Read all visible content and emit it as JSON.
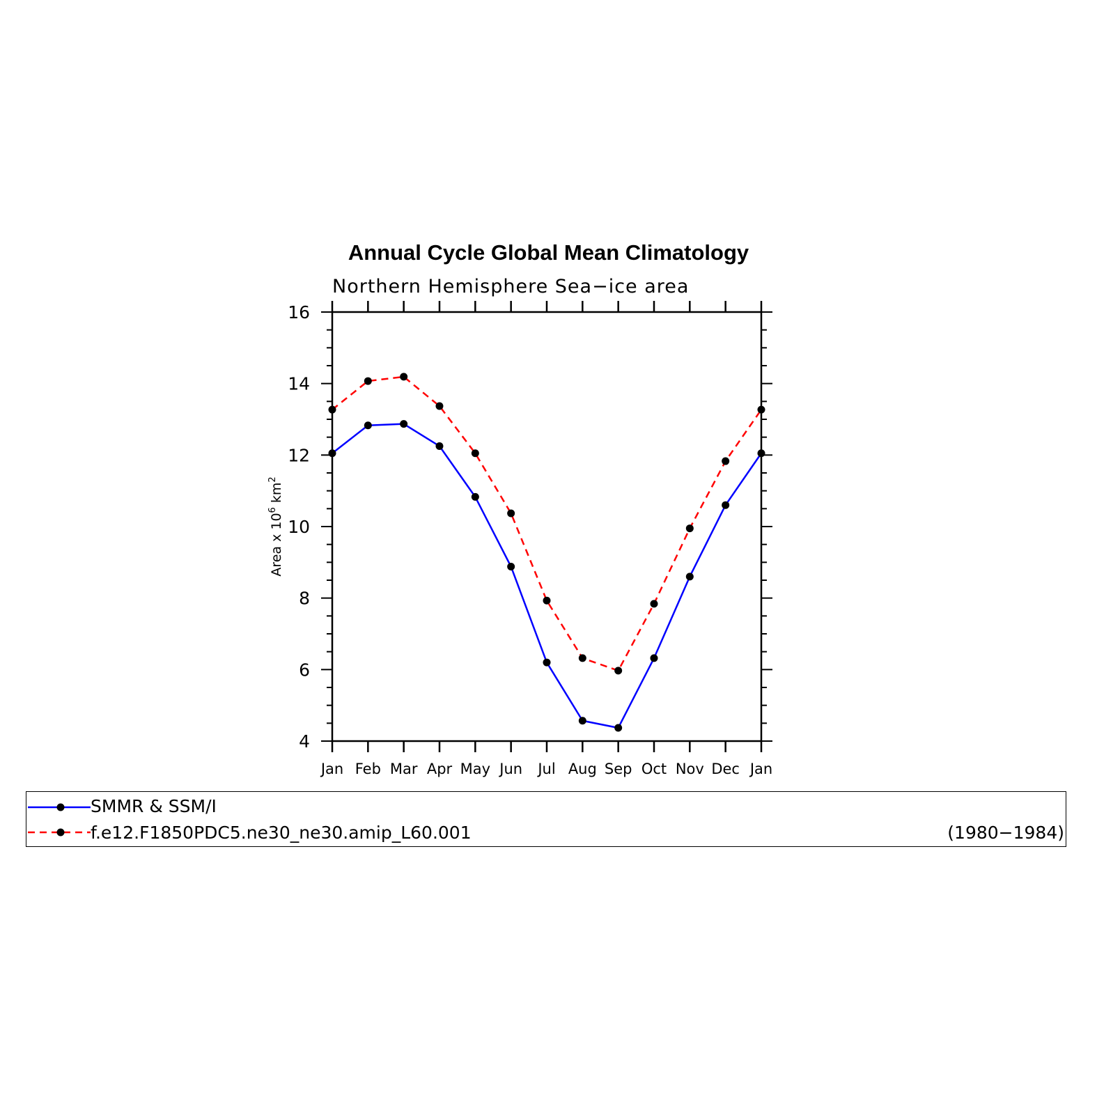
{
  "chart_data": {
    "type": "line",
    "title": "Annual Cycle Global Mean Climatology",
    "subtitle": "Northern Hemisphere Sea−ice area",
    "ylabel_main": "Area x 10",
    "ylabel_exp": "6",
    "ylabel_unit": " km",
    "ylabel_unit_exp": "2",
    "ylim": [
      4,
      16
    ],
    "yticks": [
      4,
      6,
      8,
      10,
      12,
      14,
      16
    ],
    "categories": [
      "Jan",
      "Feb",
      "Mar",
      "Apr",
      "May",
      "Jun",
      "Jul",
      "Aug",
      "Sep",
      "Oct",
      "Nov",
      "Dec",
      "Jan"
    ],
    "series": [
      {
        "name": "SMMR & SSM/I",
        "color": "#0000ff",
        "dashed": false,
        "values": [
          12.05,
          12.83,
          12.87,
          12.25,
          10.83,
          8.88,
          6.2,
          4.57,
          4.37,
          6.32,
          8.6,
          10.6,
          12.05
        ]
      },
      {
        "name": "f.e12.F1850PDC5.ne30_ne30.amip_L60.001",
        "color": "#ff0000",
        "dashed": true,
        "values": [
          13.27,
          14.07,
          14.19,
          13.37,
          12.05,
          10.37,
          7.93,
          6.32,
          5.97,
          7.84,
          9.95,
          11.83,
          13.27
        ]
      }
    ],
    "legend_note": "(1980−1984)",
    "legend_position": "bottom",
    "grid": false
  }
}
